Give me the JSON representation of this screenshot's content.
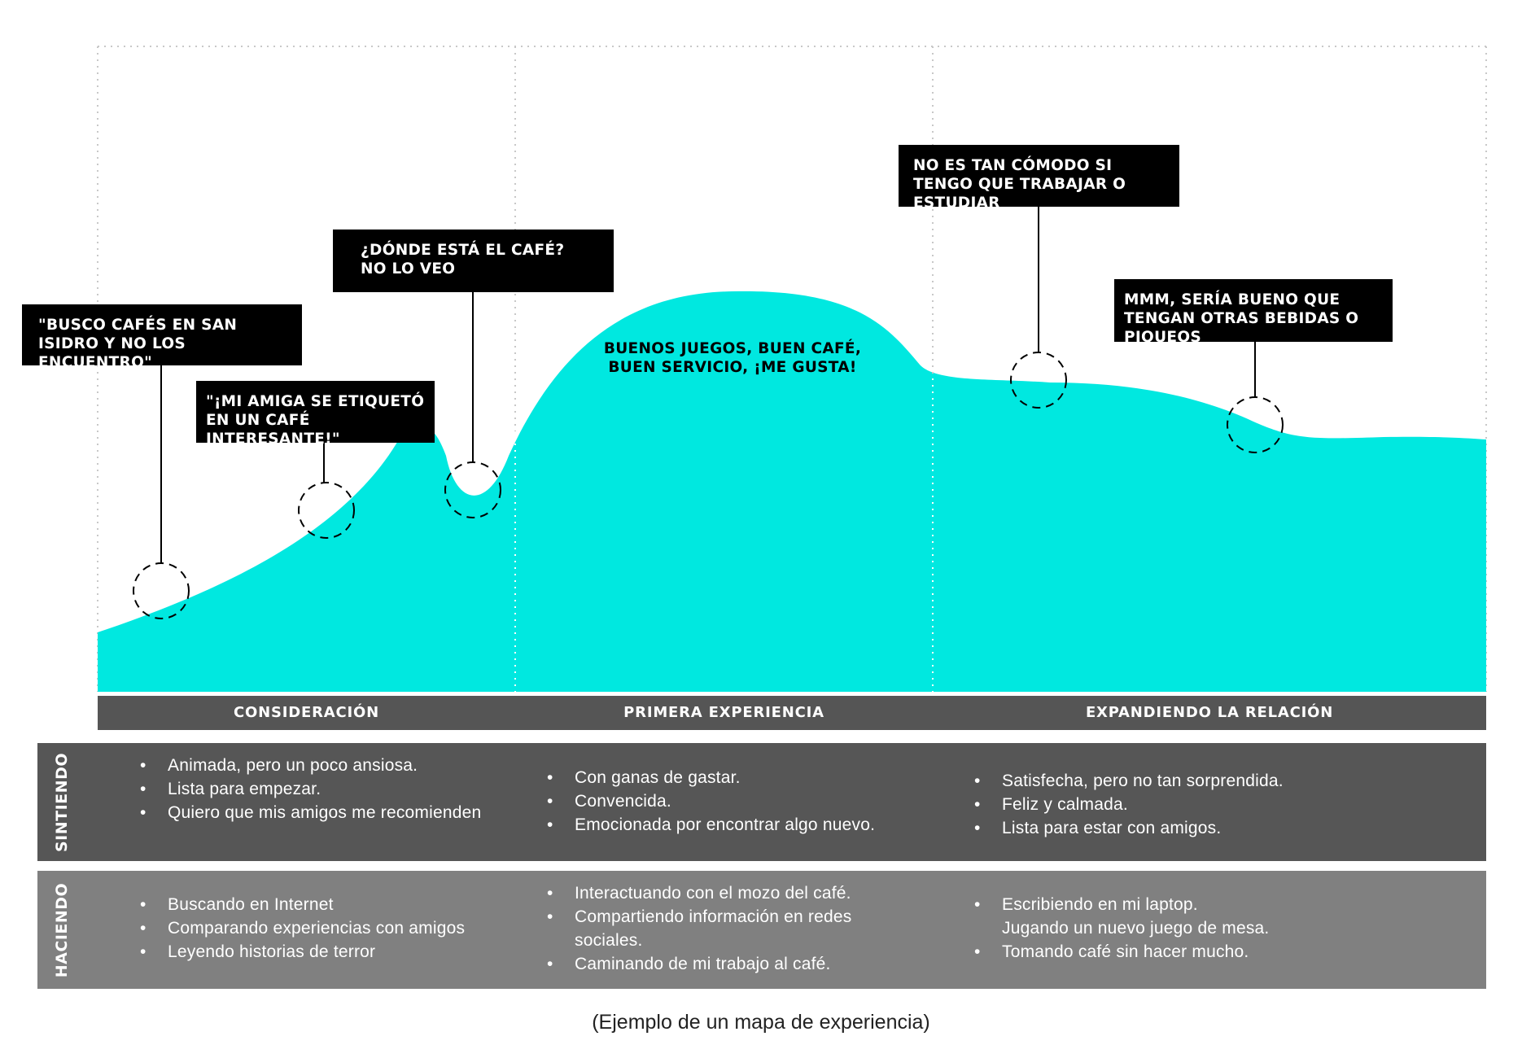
{
  "colors": {
    "curve_fill": "#00E8E0",
    "callout_bg": "#000000",
    "stage_bar": "#555555",
    "feeling_row": "#565656",
    "doing_row": "#808080"
  },
  "callouts": [
    {
      "text": "\"BUSCO CAFÉS EN SAN ISIDRO Y NO LOS ENCUENTRO\""
    },
    {
      "text": "\"¡MI AMIGA SE ETIQUETÓ EN UN CAFÉ INTERESANTE!\""
    },
    {
      "text": "¿DÓNDE ESTÁ EL CAFÉ? NO LO VEO"
    },
    {
      "text": "NO ES TAN CÓMODO SI TENGO QUE TRABAJAR O ESTUDIAR"
    },
    {
      "text": "MMM, SERÍA BUENO QUE TENGAN OTRAS BEBIDAS O PIQUEOS"
    }
  ],
  "peak_label": {
    "line1": "BUENOS JUEGOS, BUEN CAFÉ,",
    "line2": "BUEN SERVICIO, ¡ME GUSTA!"
  },
  "stages": [
    "CONSIDERACIÓN",
    "PRIMERA EXPERIENCIA",
    "EXPANDIENDO LA RELACIÓN"
  ],
  "rows": {
    "feeling": {
      "title": "SINTIENDO",
      "columns": [
        [
          {
            "bullet": "•",
            "text": "Animada, pero un poco ansiosa."
          },
          {
            "bullet": "•",
            "text": "Lista para empezar."
          },
          {
            "bullet": "•",
            "text": "Quiero que mis amigos me recomienden"
          }
        ],
        [
          {
            "bullet": "•",
            "text": "Con ganas de gastar."
          },
          {
            "bullet": "•",
            "text": "Convencida."
          },
          {
            "bullet": "•",
            "text": "Emocionada por encontrar algo nuevo."
          }
        ],
        [
          {
            "bullet": "•",
            "text": "Satisfecha, pero no tan sorprendida."
          },
          {
            "bullet": "•",
            "text": "Feliz y calmada."
          },
          {
            "bullet": "•",
            "text": "Lista para estar con amigos."
          }
        ]
      ]
    },
    "doing": {
      "title": "HACIENDO",
      "columns": [
        [
          {
            "bullet": "•",
            "text": "Buscando en Internet"
          },
          {
            "bullet": "•",
            "text": "Comparando experiencias con amigos"
          },
          {
            "bullet": "•",
            "text": "Leyendo historias de terror"
          }
        ],
        [
          {
            "bullet": "•",
            "text": "Interactuando con el mozo del café."
          },
          {
            "bullet": "•",
            "text": "Compartiendo información en redes sociales."
          },
          {
            "bullet": "•",
            "text": "Caminando de mi trabajo al café."
          }
        ],
        [
          {
            "bullet": "•",
            "text": "Escribiendo en mi laptop."
          },
          {
            "bullet": "",
            "text": "Jugando un nuevo juego de mesa."
          },
          {
            "bullet": "•",
            "text": "Tomando café sin hacer mucho."
          }
        ]
      ]
    }
  },
  "caption": "(Ejemplo de un mapa de experiencia)"
}
